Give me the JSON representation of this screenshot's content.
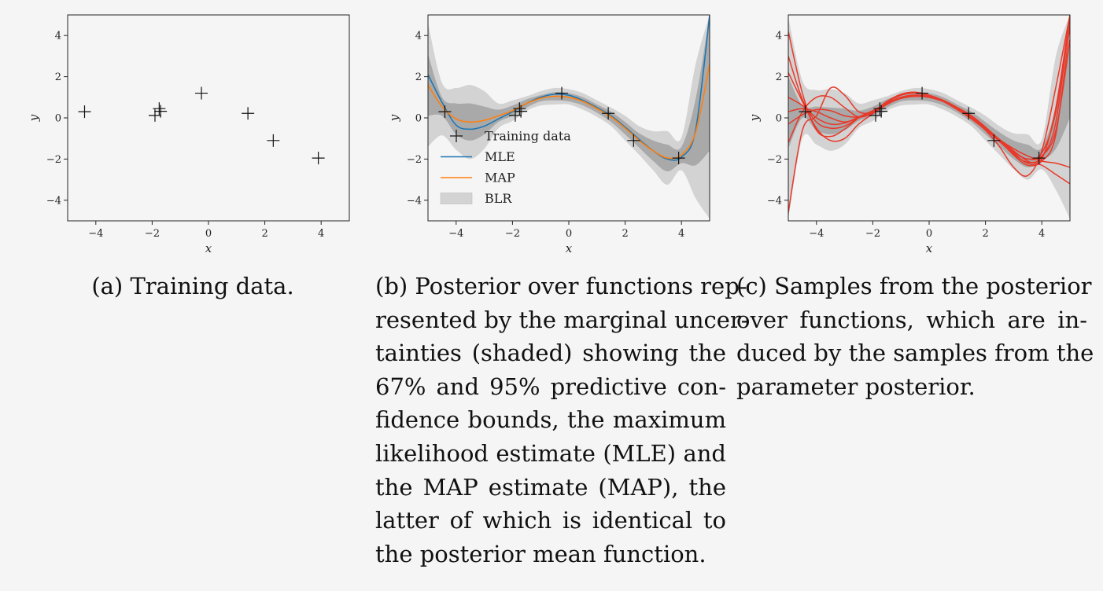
{
  "chart_data": [
    {
      "type": "scatter",
      "panel": "a",
      "xlabel": "x",
      "ylabel": "y",
      "xlim": [
        -5,
        5
      ],
      "ylim": [
        -5,
        5
      ],
      "xticks": [
        -4,
        -2,
        0,
        2,
        4
      ],
      "yticks": [
        -4,
        -2,
        0,
        2,
        4
      ],
      "xtick_labels": [
        "−4",
        "−2",
        "0",
        "2",
        "4"
      ],
      "ytick_labels": [
        "−4",
        "−2",
        "0",
        "2",
        "4"
      ],
      "grid": false,
      "series": [
        {
          "marker": "+",
          "color": "#000000",
          "x": [
            -4.4,
            -1.9,
            -1.75,
            -1.7,
            -0.25,
            1.4,
            2.3,
            3.9
          ],
          "y": [
            0.3,
            0.12,
            0.45,
            0.32,
            1.2,
            0.22,
            -1.1,
            -1.95
          ]
        }
      ]
    },
    {
      "type": "line",
      "panel": "b",
      "xlabel": "x",
      "ylabel": "y",
      "xlim": [
        -5,
        5
      ],
      "ylim": [
        -5,
        5
      ],
      "xticks": [
        -4,
        -2,
        0,
        2,
        4
      ],
      "yticks": [
        -4,
        -2,
        0,
        2,
        4
      ],
      "xtick_labels": [
        "−4",
        "−2",
        "0",
        "2",
        "4"
      ],
      "ytick_labels": [
        "−4",
        "−2",
        "0",
        "2",
        "4"
      ],
      "grid": false,
      "legend": {
        "position": "lower-left",
        "entries": [
          "Training data",
          "MLE",
          "MAP",
          "BLR"
        ]
      },
      "colors": {
        "mle": "#1f77b4",
        "map": "#ff7f0e",
        "band95": "#d3d3d3",
        "band67": "#a9a9a9",
        "points": "#000000"
      },
      "x": [
        -5,
        -4.5,
        -4,
        -3.5,
        -3,
        -2.5,
        -2,
        -1.5,
        -1,
        -0.5,
        0,
        0.5,
        1,
        1.5,
        2,
        2.5,
        3,
        3.5,
        4,
        4.5,
        5
      ],
      "series": [
        {
          "name": "Training data",
          "kind": "points",
          "x": [
            -4.4,
            -1.9,
            -1.75,
            -1.7,
            -0.25,
            1.4,
            2.3,
            3.9
          ],
          "y": [
            0.3,
            0.12,
            0.45,
            0.32,
            1.2,
            0.22,
            -1.1,
            -1.95
          ]
        },
        {
          "name": "MLE",
          "y": [
            2.1,
            0.75,
            -0.35,
            -0.55,
            -0.4,
            -0.05,
            0.3,
            0.7,
            1.0,
            1.15,
            1.1,
            0.85,
            0.5,
            0.1,
            -0.45,
            -1.05,
            -1.6,
            -2.0,
            -1.9,
            -0.6,
            5.0
          ]
        },
        {
          "name": "MAP",
          "y": [
            1.6,
            0.55,
            -0.05,
            -0.2,
            -0.12,
            0.1,
            0.35,
            0.7,
            0.95,
            1.05,
            1.0,
            0.8,
            0.45,
            0.05,
            -0.5,
            -1.1,
            -1.6,
            -1.95,
            -1.8,
            -0.7,
            2.6
          ]
        },
        {
          "name": "BLR",
          "kind": "band",
          "level": "95%",
          "lower": [
            -1.4,
            -0.85,
            -1.55,
            -2.0,
            -1.5,
            -0.5,
            -0.15,
            0.35,
            0.6,
            0.65,
            0.65,
            0.4,
            0.05,
            -0.4,
            -1.1,
            -1.8,
            -2.55,
            -3.25,
            -2.55,
            -3.9,
            -4.9
          ],
          "upper": [
            4.6,
            1.7,
            1.45,
            1.6,
            1.3,
            0.7,
            0.85,
            1.05,
            1.3,
            1.45,
            1.4,
            1.2,
            0.85,
            0.5,
            0.1,
            -0.4,
            -0.65,
            -0.65,
            -0.95,
            2.6,
            5.0
          ]
        },
        {
          "name": "BLR",
          "kind": "band",
          "level": "67%",
          "lower": [
            0.1,
            0.1,
            -0.8,
            -1.1,
            -0.8,
            -0.2,
            0.1,
            0.5,
            0.8,
            0.85,
            0.8,
            0.6,
            0.25,
            -0.2,
            -0.8,
            -1.45,
            -2.1,
            -2.6,
            -2.2,
            -2.3,
            -1.6
          ],
          "upper": [
            3.1,
            1.0,
            0.7,
            0.7,
            0.55,
            0.4,
            0.6,
            0.9,
            1.1,
            1.25,
            1.2,
            1.0,
            0.65,
            0.3,
            -0.2,
            -0.75,
            -1.1,
            -1.3,
            -1.4,
            0.9,
            5.0
          ]
        }
      ]
    },
    {
      "type": "line",
      "panel": "c",
      "xlabel": "x",
      "ylabel": "y",
      "xlim": [
        -5,
        5
      ],
      "ylim": [
        -5,
        5
      ],
      "xticks": [
        -4,
        -2,
        0,
        2,
        4
      ],
      "yticks": [
        -4,
        -2,
        0,
        2,
        4
      ],
      "xtick_labels": [
        "−4",
        "−2",
        "0",
        "2",
        "4"
      ],
      "ytick_labels": [
        "−4",
        "−2",
        "0",
        "2",
        "4"
      ],
      "grid": false,
      "colors": {
        "samples": "#e8392a",
        "band95": "#d3d3d3",
        "band67": "#a9a9a9",
        "points": "#000000"
      },
      "x": [
        -5,
        -4.5,
        -4,
        -3.5,
        -3,
        -2.5,
        -2,
        -1.5,
        -1,
        -0.5,
        0,
        0.5,
        1,
        1.5,
        2,
        2.5,
        3,
        3.5,
        4,
        4.5,
        5
      ],
      "bands": [
        {
          "level": "95%",
          "lower": [
            -4.9,
            -1.0,
            -1.3,
            -1.6,
            -1.3,
            -0.5,
            -0.15,
            0.35,
            0.6,
            0.65,
            0.65,
            0.4,
            0.05,
            -0.4,
            -1.1,
            -1.8,
            -2.5,
            -3.0,
            -2.5,
            -3.5,
            -4.9
          ],
          "upper": [
            4.9,
            1.8,
            1.35,
            1.4,
            1.2,
            0.7,
            0.85,
            1.05,
            1.3,
            1.45,
            1.4,
            1.2,
            0.85,
            0.5,
            0.1,
            -0.4,
            -0.75,
            -0.8,
            -1.05,
            3.0,
            5.0
          ]
        },
        {
          "level": "67%",
          "lower": [
            -1.5,
            0.0,
            -0.6,
            -0.8,
            -0.6,
            -0.15,
            0.1,
            0.5,
            0.8,
            0.85,
            0.8,
            0.6,
            0.25,
            -0.2,
            -0.8,
            -1.4,
            -2.0,
            -2.4,
            -2.1,
            -1.5,
            0.0
          ],
          "upper": [
            2.0,
            0.6,
            0.55,
            0.5,
            0.45,
            0.35,
            0.55,
            0.9,
            1.1,
            1.25,
            1.2,
            1.0,
            0.65,
            0.3,
            -0.2,
            -0.7,
            -1.1,
            -1.3,
            -1.45,
            0.5,
            3.5
          ]
        }
      ],
      "samples": [
        [
          1.0,
          0.6,
          0.0,
          -0.3,
          -0.25,
          0.05,
          0.35,
          0.7,
          0.95,
          1.05,
          1.0,
          0.8,
          0.45,
          0.05,
          -0.5,
          -1.1,
          -1.65,
          -2.0,
          -1.85,
          -0.6,
          3.8
        ],
        [
          -1.2,
          0.3,
          1.0,
          1.0,
          0.5,
          0.05,
          0.25,
          0.75,
          1.1,
          1.2,
          1.1,
          0.85,
          0.5,
          0.1,
          -0.45,
          -1.1,
          -1.8,
          -2.3,
          -2.1,
          -0.8,
          4.5
        ],
        [
          -4.6,
          -0.6,
          0.1,
          1.45,
          1.1,
          0.3,
          0.3,
          0.8,
          1.15,
          1.25,
          1.1,
          0.8,
          0.4,
          -0.05,
          -0.6,
          -1.4,
          -2.4,
          -2.8,
          -1.6,
          1.5,
          5.0
        ],
        [
          2.2,
          0.8,
          -0.5,
          -1.1,
          -1.0,
          -0.3,
          0.2,
          0.65,
          0.95,
          1.05,
          1.0,
          0.8,
          0.45,
          0.0,
          -0.55,
          -1.15,
          -1.75,
          -2.15,
          -1.9,
          -0.2,
          5.0
        ],
        [
          4.2,
          1.2,
          -0.6,
          -0.9,
          -0.55,
          0.0,
          0.35,
          0.7,
          0.95,
          1.05,
          1.0,
          0.8,
          0.5,
          0.1,
          -0.5,
          -1.05,
          -1.5,
          -1.85,
          -2.1,
          -2.2,
          -2.4
        ],
        [
          0.3,
          0.45,
          0.3,
          0.0,
          -0.2,
          0.0,
          0.3,
          0.7,
          1.0,
          1.1,
          1.05,
          0.85,
          0.5,
          0.1,
          -0.45,
          -1.05,
          -1.6,
          -2.1,
          -2.3,
          -2.75,
          -3.2
        ],
        [
          -0.3,
          0.15,
          0.4,
          0.35,
          0.1,
          0.05,
          0.3,
          0.7,
          1.0,
          1.1,
          1.0,
          0.8,
          0.45,
          0.05,
          -0.5,
          -1.1,
          -1.7,
          -2.2,
          -2.0,
          0.5,
          5.0
        ],
        [
          3.0,
          0.9,
          -0.2,
          -0.5,
          -0.4,
          0.0,
          0.3,
          0.7,
          0.95,
          1.1,
          1.05,
          0.85,
          0.5,
          0.1,
          -0.45,
          -1.1,
          -1.65,
          -2.0,
          -1.7,
          0.3,
          4.9
        ]
      ],
      "points": {
        "x": [
          -4.4,
          -1.9,
          -1.75,
          -1.7,
          -0.25,
          1.4,
          2.3,
          3.9
        ],
        "y": [
          0.3,
          0.12,
          0.45,
          0.32,
          1.2,
          0.22,
          -1.1,
          -1.95
        ]
      }
    }
  ],
  "captions": {
    "a": [
      "(a) Training data."
    ],
    "b": [
      "(b) Posterior over functions rep-",
      "resented by the marginal uncer-",
      "tainties (shaded) showing the",
      "67% and 95% predictive con-",
      "fidence bounds, the maximum",
      "likelihood estimate (MLE) and",
      "the MAP estimate (MAP), the",
      "latter of which is identical to",
      "the posterior mean function."
    ],
    "c": [
      "(c) Samples from the posterior",
      "over functions, which are in-",
      "duced by the samples from the",
      "parameter posterior."
    ]
  }
}
